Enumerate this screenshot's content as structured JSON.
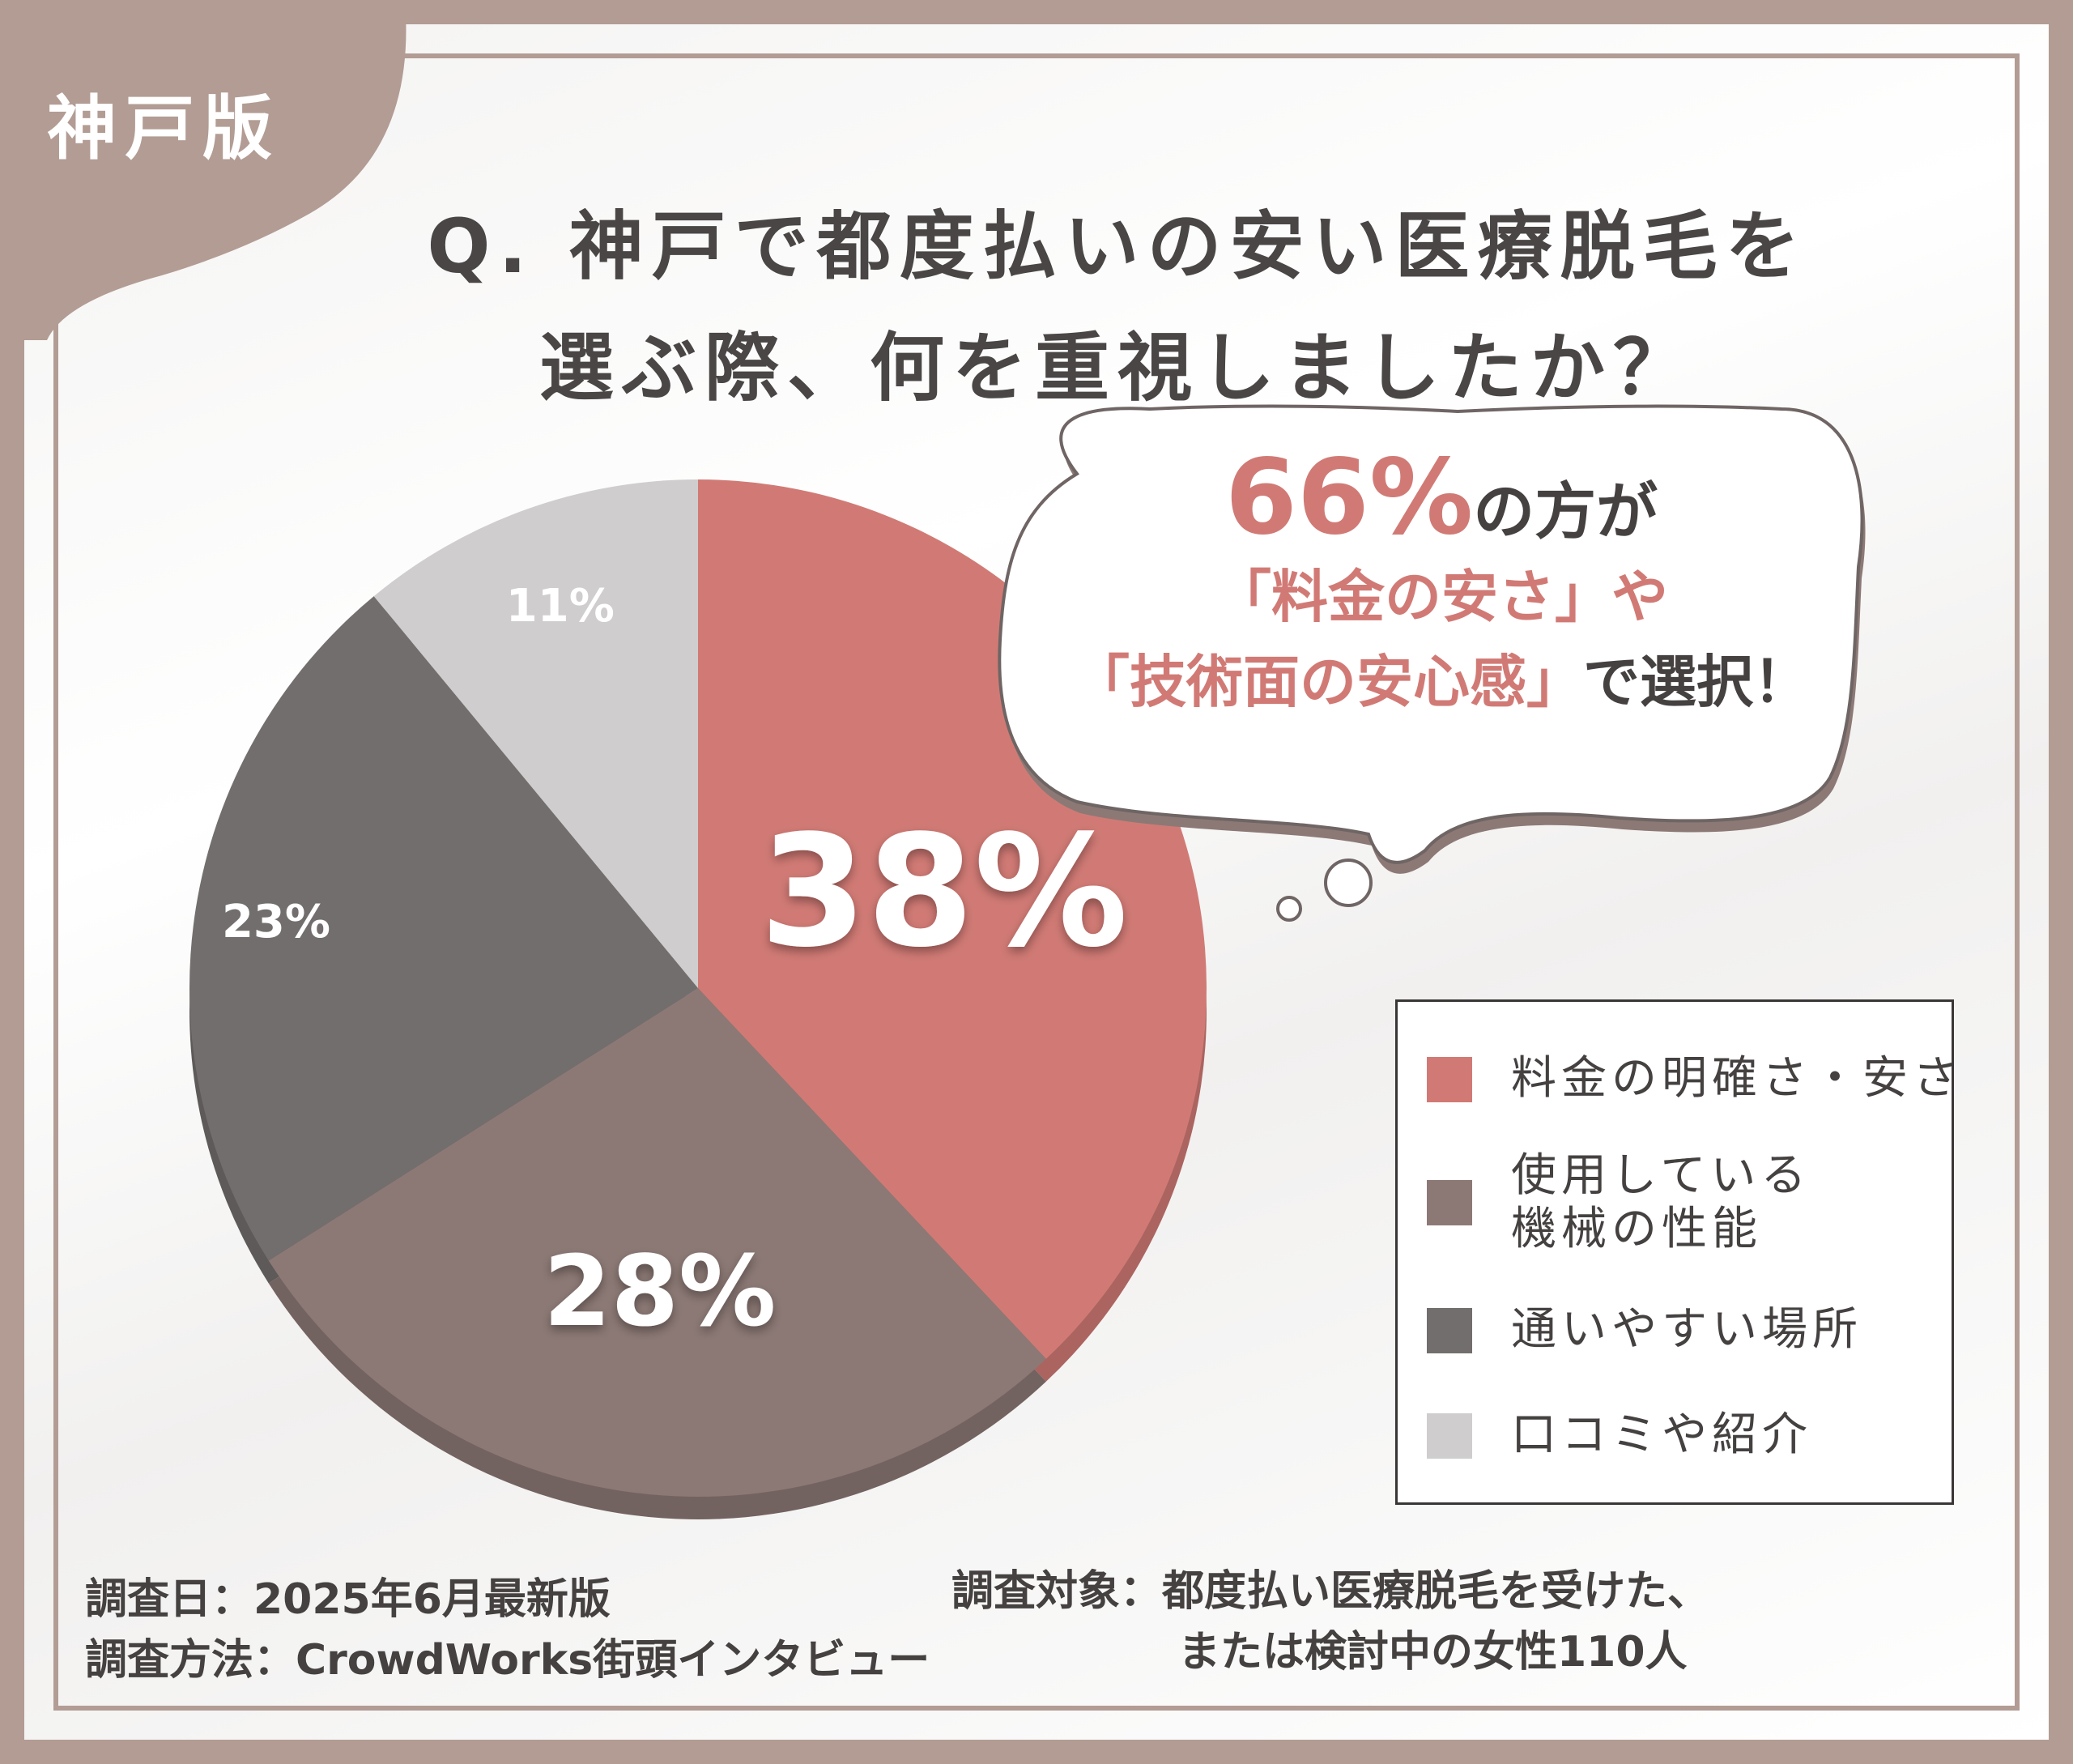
{
  "tag": "神戸版",
  "title": {
    "line1": "Q. 神戸で都度払いの安い医療脱毛を",
    "line2": "選ぶ際、何を重視しましたか？"
  },
  "bubble": {
    "pct": "66%",
    "line1_rest": "の方が",
    "line2": "「料金の安さ」や",
    "line3_pink": "「技術面の安心感」",
    "line3_rest": "で選択！"
  },
  "chart_data": {
    "type": "pie",
    "categories": [
      "料金の明確さ・安さ",
      "使用している機械の性能",
      "通いやすい場所",
      "口コミや紹介"
    ],
    "values": [
      38,
      28,
      23,
      11
    ],
    "value_labels": [
      "38%",
      "28%",
      "23%",
      "11%"
    ],
    "colors": [
      "#d17a75",
      "#8c7975",
      "#726e6d",
      "#cfcdcd"
    ],
    "start": "12 o'clock, clockwise"
  },
  "legend": {
    "items": [
      {
        "lines": [
          "料金の明確さ・安さ"
        ],
        "color": "#d17a75"
      },
      {
        "lines": [
          "使用している",
          "機械の性能"
        ],
        "color": "#8c7975"
      },
      {
        "lines": [
          "通いやすい場所"
        ],
        "color": "#726e6d"
      },
      {
        "lines": [
          "口コミや紹介"
        ],
        "color": "#cfcdcd"
      }
    ]
  },
  "footer": {
    "date": "調査日：2025年6月最新版",
    "method": "調査方法：CrowdWorks街頭インタビュー",
    "target_line1": "調査対象：都度払い医療脱毛を受けた、",
    "target_line2": "または検討中の女性110人"
  }
}
